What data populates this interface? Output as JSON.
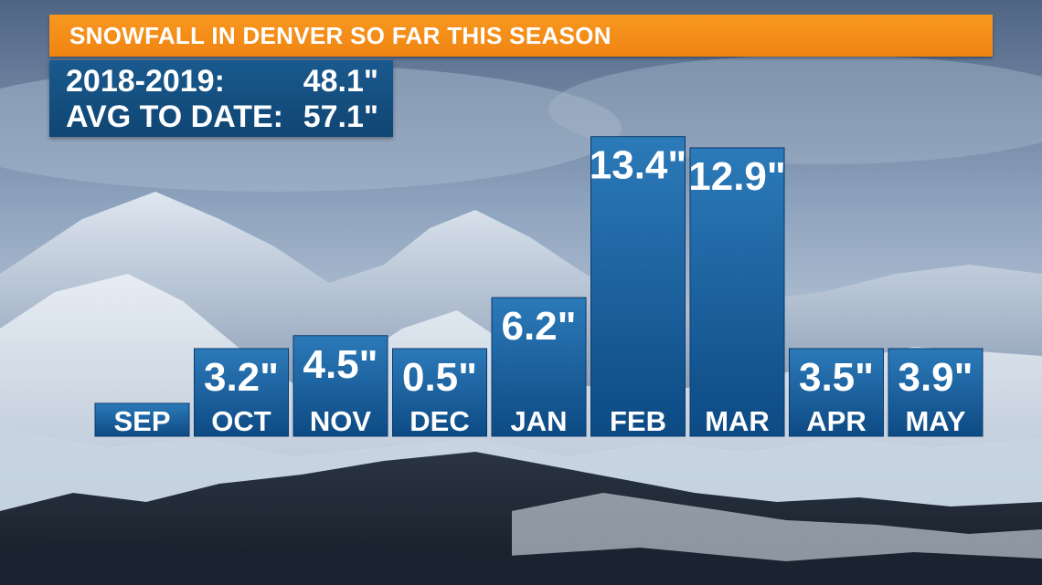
{
  "colors": {
    "title_bar": "#f7941d",
    "stats_box": "#154f80",
    "bar_top": "#2b78b8",
    "bar_bottom": "#0d4a84",
    "text": "#ffffff"
  },
  "title": "SNOWFALL IN DENVER SO FAR THIS SEASON",
  "stats": {
    "season_label": "2018-2019:",
    "season_value": "48.1\"",
    "avg_label": "AVG TO DATE:",
    "avg_value": "57.1\""
  },
  "chart_data": {
    "type": "bar",
    "unit": "inches",
    "categories": [
      "SEP",
      "OCT",
      "NOV",
      "DEC",
      "JAN",
      "FEB",
      "MAR",
      "APR",
      "MAY"
    ],
    "values": [
      null,
      3.2,
      4.5,
      0.5,
      6.2,
      13.4,
      12.9,
      3.5,
      3.9
    ],
    "labels": [
      "",
      "3.2\"",
      "4.5\"",
      "0.5\"",
      "6.2\"",
      "13.4\"",
      "12.9\"",
      "3.5\"",
      "3.9\""
    ],
    "title": "SNOWFALL IN DENVER SO FAR THIS SEASON",
    "xlabel": "",
    "ylabel": ""
  }
}
